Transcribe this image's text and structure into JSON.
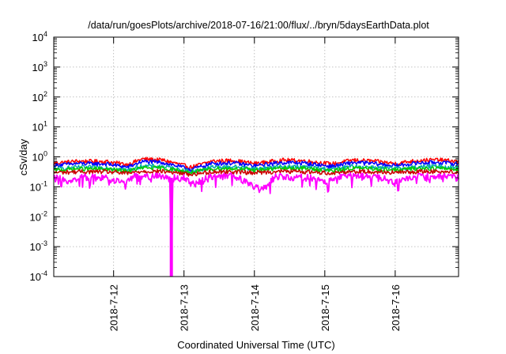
{
  "chart_data": {
    "type": "line",
    "title": "/data/run/goesPlots/archive/2018-07-16/21:00/flux/../bryn/5daysEarthData.plot",
    "xlabel": "Coordinated Universal Time (UTC)",
    "ylabel": "cSv/day",
    "y_scale": "log",
    "ylim": [
      0.0001,
      10000
    ],
    "xlim": [
      11.15,
      16.9
    ],
    "grid": true,
    "legend": "none",
    "y_ticks": [
      {
        "base": "10",
        "exp": "-4",
        "value": 0.0001
      },
      {
        "base": "10",
        "exp": "-3",
        "value": 0.001
      },
      {
        "base": "10",
        "exp": "-2",
        "value": 0.01
      },
      {
        "base": "10",
        "exp": "-1",
        "value": 0.1
      },
      {
        "base": "10",
        "exp": "0",
        "value": 1
      },
      {
        "base": "10",
        "exp": "1",
        "value": 10
      },
      {
        "base": "10",
        "exp": "2",
        "value": 100
      },
      {
        "base": "10",
        "exp": "3",
        "value": 1000
      },
      {
        "base": "10",
        "exp": "4",
        "value": 10000
      }
    ],
    "x_ticks": [
      {
        "label": "2018-7-12",
        "value": 12
      },
      {
        "label": "2018-7-13",
        "value": 13
      },
      {
        "label": "2018-7-14",
        "value": 14
      },
      {
        "label": "2018-7-15",
        "value": 15
      },
      {
        "label": "2018-7-16",
        "value": 16
      }
    ],
    "series": [
      {
        "color": "#ff0000",
        "x": [
          11.15,
          11.5,
          11.9,
          12.2,
          12.4,
          12.7,
          13.1,
          13.4,
          13.7,
          14.0,
          14.4,
          14.7,
          15.1,
          15.4,
          15.7,
          16.0,
          16.3,
          16.6,
          16.9
        ],
        "values": [
          0.62,
          0.72,
          0.7,
          0.55,
          0.85,
          0.78,
          0.45,
          0.72,
          0.76,
          0.6,
          0.78,
          0.74,
          0.58,
          0.78,
          0.72,
          0.6,
          0.75,
          0.8,
          0.7
        ]
      },
      {
        "color": "#0000ff",
        "x": [
          11.15,
          11.5,
          11.9,
          12.2,
          12.4,
          12.7,
          13.1,
          13.4,
          13.7,
          14.0,
          14.4,
          14.7,
          15.1,
          15.4,
          15.7,
          16.0,
          16.3,
          16.6,
          16.9
        ],
        "values": [
          0.52,
          0.6,
          0.58,
          0.45,
          0.7,
          0.65,
          0.38,
          0.6,
          0.63,
          0.5,
          0.65,
          0.62,
          0.48,
          0.65,
          0.6,
          0.5,
          0.62,
          0.66,
          0.58
        ]
      },
      {
        "color": "#00aaaa",
        "x": [
          11.15,
          11.5,
          11.9,
          12.2,
          12.4,
          12.7,
          13.1,
          13.4,
          13.7,
          14.0,
          14.4,
          14.7,
          15.1,
          15.4,
          15.7,
          16.0,
          16.3,
          16.6,
          16.9
        ],
        "values": [
          0.4,
          0.45,
          0.44,
          0.36,
          0.5,
          0.48,
          0.32,
          0.45,
          0.47,
          0.4,
          0.48,
          0.46,
          0.38,
          0.48,
          0.45,
          0.4,
          0.46,
          0.48,
          0.44
        ]
      },
      {
        "color": "#00cc00",
        "x": [
          11.15,
          11.5,
          11.9,
          12.2,
          12.4,
          12.7,
          13.1,
          13.4,
          13.7,
          14.0,
          14.4,
          14.7,
          15.1,
          15.4,
          15.7,
          16.0,
          16.3,
          16.6,
          16.9
        ],
        "values": [
          0.36,
          0.4,
          0.39,
          0.33,
          0.43,
          0.42,
          0.3,
          0.4,
          0.41,
          0.36,
          0.42,
          0.41,
          0.34,
          0.42,
          0.4,
          0.36,
          0.41,
          0.42,
          0.39
        ]
      },
      {
        "color": "#cc0000",
        "x": [
          11.15,
          11.5,
          11.9,
          12.2,
          12.4,
          12.7,
          13.1,
          13.4,
          13.7,
          14.0,
          14.4,
          14.7,
          15.1,
          15.4,
          15.7,
          16.0,
          16.3,
          16.6,
          16.9
        ],
        "values": [
          0.3,
          0.32,
          0.32,
          0.28,
          0.33,
          0.33,
          0.26,
          0.32,
          0.32,
          0.3,
          0.33,
          0.32,
          0.29,
          0.33,
          0.32,
          0.3,
          0.32,
          0.33,
          0.31
        ]
      },
      {
        "color": "#ff00ff",
        "x": [
          11.15,
          11.4,
          11.6,
          11.9,
          12.1,
          12.3,
          12.6,
          12.8,
          12.82,
          12.84,
          13.0,
          13.1,
          13.4,
          13.7,
          13.9,
          14.1,
          14.3,
          14.5,
          14.8,
          15.0,
          15.2,
          15.5,
          15.8,
          16.0,
          16.3,
          16.6,
          16.9
        ],
        "values": [
          0.2,
          0.16,
          0.22,
          0.2,
          0.14,
          0.22,
          0.24,
          0.2,
          0.0001,
          0.2,
          0.2,
          0.12,
          0.22,
          0.23,
          0.14,
          0.08,
          0.22,
          0.22,
          0.2,
          0.14,
          0.22,
          0.23,
          0.2,
          0.14,
          0.22,
          0.23,
          0.2
        ]
      }
    ]
  }
}
